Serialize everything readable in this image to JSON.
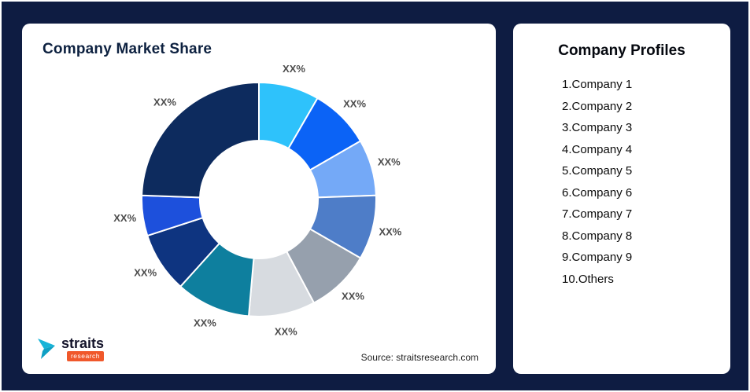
{
  "page": {
    "background_color": "#0e1c42",
    "card_color": "#ffffff"
  },
  "left_card": {
    "title": "Company Market Share",
    "source": "Source: straitsresearch.com"
  },
  "logo": {
    "name": "straits",
    "sub": "research",
    "icon": "straits-arrow-icon",
    "icon_color": "#17b4d8",
    "tag_color": "#f0582b"
  },
  "right_card": {
    "title": "Company Profiles",
    "items": [
      "1.Company 1",
      "2.Company 2",
      "3.Company 3",
      "4.Company 4",
      "5.Company 5",
      "6.Company 6",
      "7.Company 7",
      "8.Company 8",
      "9.Company 9",
      "10.Others"
    ]
  },
  "chart_data": {
    "type": "pie",
    "subtype": "donut",
    "title": "Company Market Share",
    "legend_position": "none",
    "label_color": "#4d4d4d",
    "gap_stroke": "#ffffff",
    "segments": [
      {
        "name": "Company 1",
        "label": "XX%",
        "value": 30,
        "color": "#2ec2fb"
      },
      {
        "name": "Company 2",
        "label": "XX%",
        "value": 30,
        "color": "#0b63f6"
      },
      {
        "name": "Company 3",
        "label": "XX%",
        "value": 28,
        "color": "#74a9f7"
      },
      {
        "name": "Company 4",
        "label": "XX%",
        "value": 32,
        "color": "#4e7dc8"
      },
      {
        "name": "Company 5",
        "label": "XX%",
        "value": 32,
        "color": "#96a0ad"
      },
      {
        "name": "Company 6",
        "label": "XX%",
        "value": 33,
        "color": "#d7dbe0"
      },
      {
        "name": "Company 7",
        "label": "XX%",
        "value": 37,
        "color": "#0e7f9e"
      },
      {
        "name": "Company 8",
        "label": "XX%",
        "value": 30,
        "color": "#0e3480"
      },
      {
        "name": "Company 9",
        "label": "XX%",
        "value": 20,
        "color": "#1d50dc"
      },
      {
        "name": "Others",
        "label": "XX%",
        "value": 88,
        "color": "#0d2b5e"
      }
    ]
  }
}
